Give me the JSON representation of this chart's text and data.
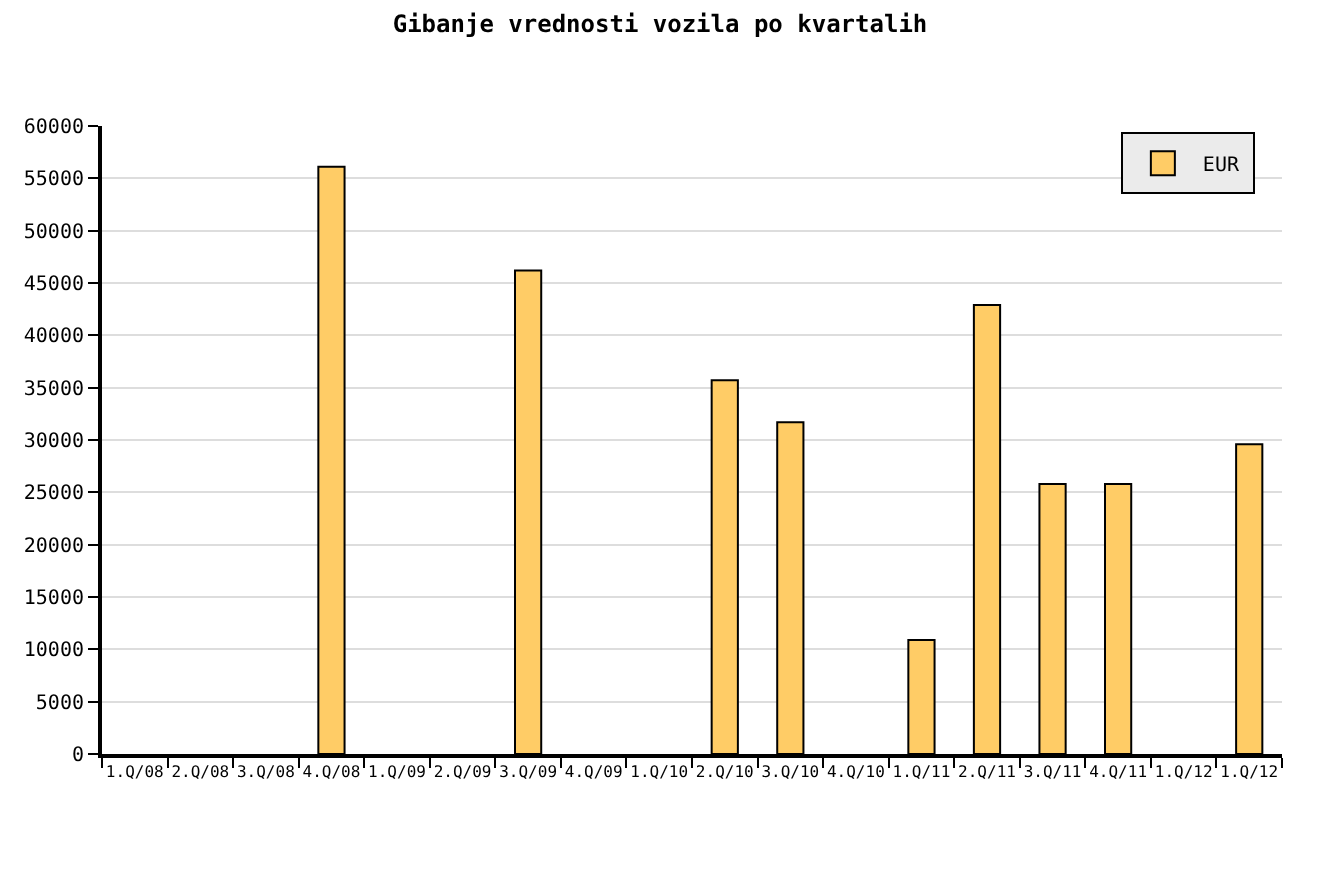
{
  "chart_data": {
    "type": "bar",
    "title": "Gibanje vrednosti vozila po kvartalih",
    "categories": [
      "1.Q/08",
      "2.Q/08",
      "3.Q/08",
      "4.Q/08",
      "1.Q/09",
      "2.Q/09",
      "3.Q/09",
      "4.Q/09",
      "1.Q/10",
      "2.Q/10",
      "3.Q/10",
      "4.Q/10",
      "1.Q/11",
      "2.Q/11",
      "3.Q/11",
      "4.Q/11",
      "1.Q/12",
      "1.Q/12"
    ],
    "series": [
      {
        "name": "EUR",
        "color": "#ffcc66",
        "values": [
          null,
          null,
          null,
          56100,
          null,
          null,
          46200,
          null,
          null,
          35700,
          31700,
          null,
          10900,
          42900,
          25800,
          25800,
          null,
          29600
        ]
      }
    ],
    "ylim": [
      0,
      60000
    ],
    "yticks": [
      0,
      5000,
      10000,
      15000,
      20000,
      25000,
      30000,
      35000,
      40000,
      45000,
      50000,
      55000,
      60000
    ],
    "grid": "y",
    "legend": "top right"
  }
}
